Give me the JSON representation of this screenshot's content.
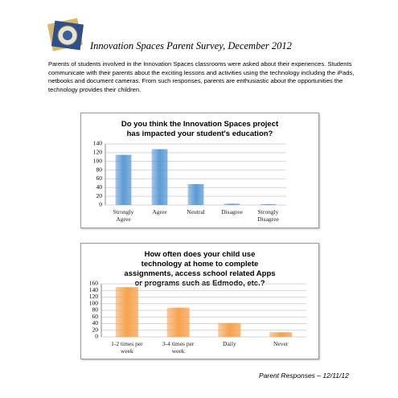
{
  "document": {
    "title": "Innovation Spaces Parent Survey, December 2012",
    "paragraph": "Parents of students involved in the Innovation Spaces classrooms were asked about their experiences.  Students communicate with their parents about the exciting lessons and activities using the technology including the iPads, netbooks and document cameras.  From such responses, parents are enthusiastic about the opportunities the technology provides their children.",
    "footer": "Parent Responses – 12/11/12"
  },
  "chart_data": [
    {
      "type": "bar",
      "title": "Do you think the Innovation Spaces project has impacted your student's education?",
      "categories": [
        "Strongly Agree",
        "Agree",
        "Neutral",
        "Disagree",
        "Strongly Disagree"
      ],
      "values": [
        115,
        128,
        48,
        3,
        2
      ],
      "color": "#5b9bd5",
      "ylim": [
        0,
        140
      ],
      "yticks": [
        0,
        20,
        40,
        60,
        80,
        100,
        120,
        140
      ],
      "grid": true
    },
    {
      "type": "bar",
      "title": "How often does your child use technology at home to complete assignments, access school related Apps or programs such as Edmodo, etc.?",
      "categories": [
        "1-2 times per week",
        "3-4 times per week",
        "Daily",
        "Never"
      ],
      "values": [
        150,
        88,
        42,
        14
      ],
      "color": "#f7a24f",
      "ylim": [
        0,
        160
      ],
      "yticks": [
        0,
        20,
        40,
        60,
        80,
        100,
        120,
        140,
        160
      ],
      "grid": true
    }
  ]
}
